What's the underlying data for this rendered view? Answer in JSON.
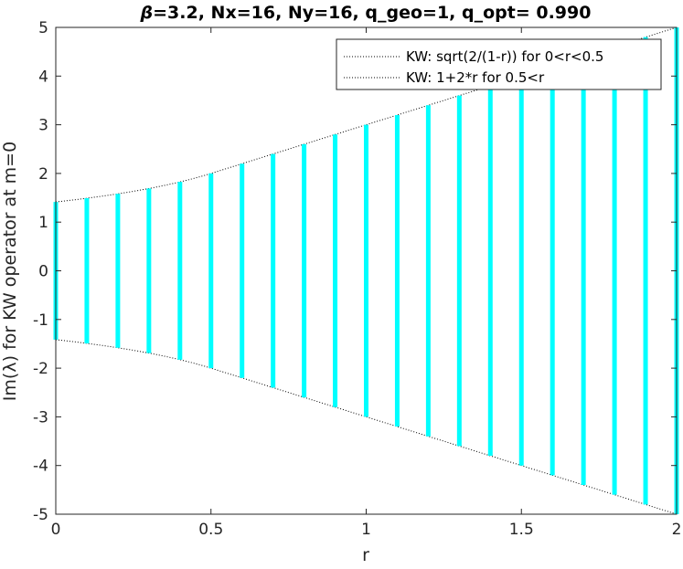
{
  "chart_data": {
    "type": "scatter",
    "title_parts": {
      "beta": "β",
      "rest": "=3.2, Nx=16, Ny=16, q_geo=1, q_opt= 0.990"
    },
    "xlabel": "r",
    "ylabel": "Im(λ) for KW operator at m=0",
    "xlim": [
      0,
      2
    ],
    "ylim": [
      -5,
      5
    ],
    "xticks": [
      "0",
      "0.5",
      "1",
      "1.5",
      "2"
    ],
    "yticks": [
      "-5",
      "-4",
      "-3",
      "-2",
      "-1",
      "0",
      "1",
      "2",
      "3",
      "4",
      "5"
    ],
    "r_values": [
      0,
      0.1,
      0.2,
      0.3,
      0.4,
      0.5,
      0.6,
      0.7,
      0.8,
      0.9,
      1.0,
      1.1,
      1.2,
      1.3,
      1.4,
      1.5,
      1.6,
      1.7,
      1.8,
      1.9,
      2.0
    ],
    "eigenvalue_extent": [
      1.414,
      1.491,
      1.581,
      1.69,
      1.826,
      2.0,
      2.2,
      2.4,
      2.6,
      2.8,
      3.0,
      3.2,
      3.4,
      3.6,
      3.8,
      4.0,
      4.2,
      4.4,
      4.6,
      4.8,
      5.0
    ],
    "series_color": "#00ffff",
    "legend": {
      "position": "top-right",
      "entries": [
        {
          "label": "KW: sqrt(2/(1-r)) for 0<r<0.5",
          "style": "dotted",
          "color": "#000000"
        },
        {
          "label": "KW: 1+2*r for 0.5<r",
          "style": "dotted",
          "color": "#000000"
        }
      ]
    },
    "grid": false
  }
}
